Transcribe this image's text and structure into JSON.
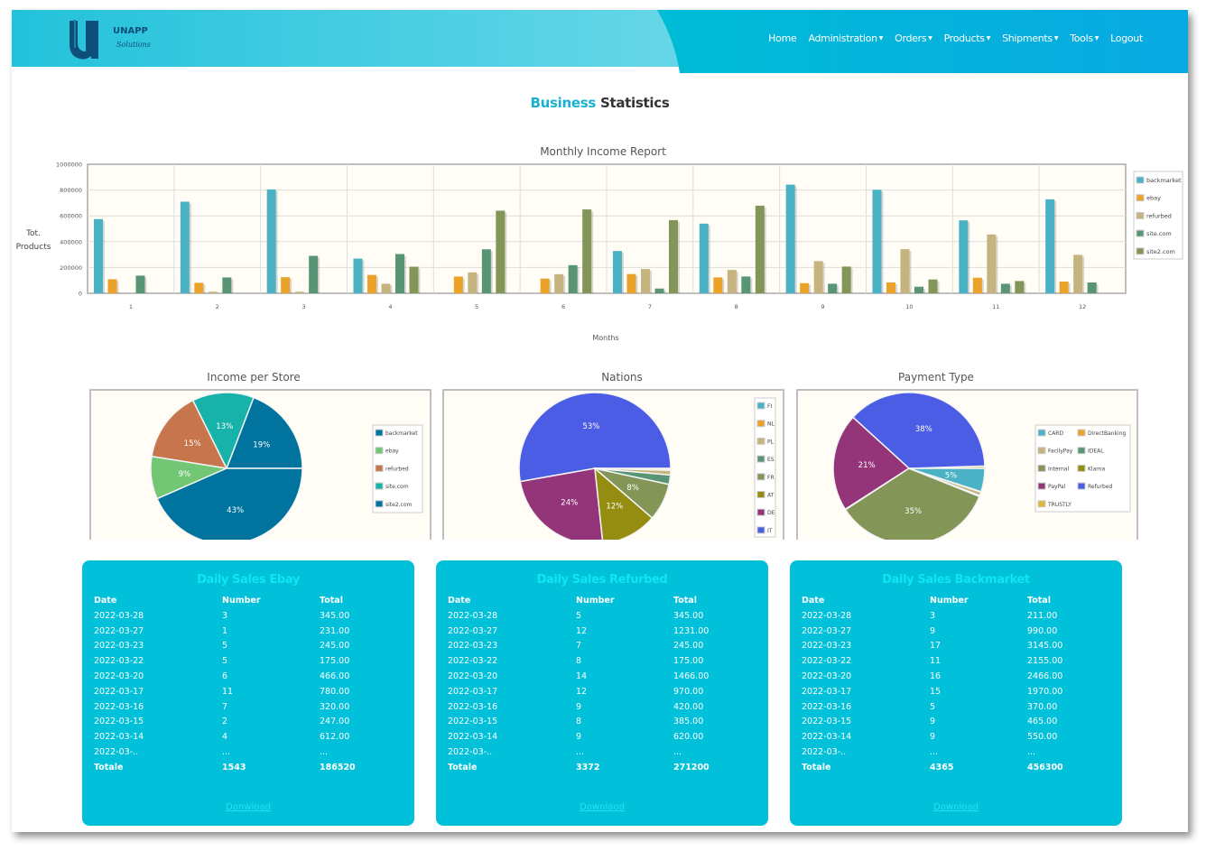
{
  "header": {
    "logo_text": "UNAPP",
    "logo_sub": "Solutions",
    "nav": [
      {
        "label": "Home",
        "caret": false
      },
      {
        "label": "Administration",
        "caret": true
      },
      {
        "label": "Orders",
        "caret": true
      },
      {
        "label": "Products",
        "caret": true
      },
      {
        "label": "Shipments",
        "caret": true
      },
      {
        "label": "Tools",
        "caret": true
      },
      {
        "label": "Logout",
        "caret": false
      }
    ]
  },
  "page_title": {
    "highlight": "Business",
    "rest": "Statistics"
  },
  "chart_data": [
    {
      "type": "bar",
      "title": "Monthly Income Report",
      "xlabel": "Months",
      "ylabel": "Tot. Products",
      "ylim": [
        0,
        1000000
      ],
      "yticks": [
        0,
        200000,
        400000,
        600000,
        800000,
        1000000
      ],
      "categories": [
        "1",
        "2",
        "3",
        "4",
        "5",
        "6",
        "7",
        "8",
        "9",
        "10",
        "11",
        "12"
      ],
      "grid": true,
      "legend": "right",
      "series": [
        {
          "name": "backmarket",
          "color": "#4bb2c5",
          "values": [
            575000,
            710000,
            805000,
            269000,
            0,
            0,
            328000,
            540000,
            842000,
            802000,
            565000,
            728000
          ]
        },
        {
          "name": "ebay",
          "color": "#eaa228",
          "values": [
            109000,
            81000,
            125000,
            142000,
            130000,
            114000,
            149000,
            123000,
            79000,
            84000,
            121000,
            91000
          ]
        },
        {
          "name": "refurbed",
          "color": "#c5b47f",
          "values": [
            0,
            12000,
            12000,
            74000,
            162000,
            148000,
            188000,
            181000,
            249000,
            342000,
            456000,
            298000
          ]
        },
        {
          "name": "site.com",
          "color": "#579575",
          "values": [
            137000,
            123000,
            290000,
            304000,
            341000,
            218000,
            37000,
            130000,
            74000,
            51000,
            74000,
            84000
          ]
        },
        {
          "name": "site2.com",
          "color": "#839557",
          "values": [
            0,
            0,
            0,
            206000,
            640000,
            650000,
            567000,
            679000,
            207000,
            107000,
            95000,
            0
          ]
        }
      ]
    },
    {
      "type": "pie",
      "title": "Income per Store",
      "legend": "right",
      "slices": [
        {
          "label": "backmarket",
          "value": 43,
          "color": "#00749f"
        },
        {
          "label": "ebay",
          "value": 9,
          "color": "#73c774"
        },
        {
          "label": "refurbed",
          "value": 15,
          "color": "#c7754c"
        },
        {
          "label": "site.com",
          "value": 13,
          "color": "#17b2a9"
        },
        {
          "label": "site2.com",
          "value": 19,
          "color": "#00749f"
        }
      ]
    },
    {
      "type": "pie",
      "title": "Nations",
      "legend": "right",
      "slices": [
        {
          "label": "FI",
          "value": 0.2,
          "color": "#4bb2c5"
        },
        {
          "label": "NL",
          "value": 0.2,
          "color": "#eaa228"
        },
        {
          "label": "PL",
          "value": 1,
          "color": "#c5b47f"
        },
        {
          "label": "ES",
          "value": 2,
          "color": "#579575"
        },
        {
          "label": "FR",
          "value": 8,
          "color": "#839557"
        },
        {
          "label": "AT",
          "value": 12,
          "color": "#958c12"
        },
        {
          "label": "DE",
          "value": 24,
          "color": "#953579"
        },
        {
          "label": "IT",
          "value": 53,
          "color": "#4b5de4"
        }
      ]
    },
    {
      "type": "pie",
      "title": "Payment Type",
      "legend": "right",
      "slices": [
        {
          "label": "CARD",
          "value": 5,
          "color": "#4bb2c5"
        },
        {
          "label": "DirectBanking",
          "value": 0.1,
          "color": "#eaa228"
        },
        {
          "label": "FacilyPay",
          "value": 0.8,
          "color": "#c5b47f"
        },
        {
          "label": "IDEAL",
          "value": 0.2,
          "color": "#579575"
        },
        {
          "label": "Internal",
          "value": 35,
          "color": "#839557"
        },
        {
          "label": "Klarna",
          "value": 0.1,
          "color": "#958c12"
        },
        {
          "label": "PayPal",
          "value": 21,
          "color": "#953579"
        },
        {
          "label": "Refurbed",
          "value": 38,
          "color": "#4b5de4"
        },
        {
          "label": "TRUSTLY",
          "value": 0.5,
          "color": "#d8b83f"
        }
      ]
    }
  ],
  "tables": [
    {
      "title": "Daily Sales Ebay",
      "headers": [
        "Date",
        "Number",
        "Total"
      ],
      "rows": [
        [
          "2022-03-28",
          "3",
          "345.00"
        ],
        [
          "2022-03-27",
          "1",
          "231.00"
        ],
        [
          "2022-03-23",
          "5",
          "245.00"
        ],
        [
          "2022-03-22",
          "5",
          "175.00"
        ],
        [
          "2022-03-20",
          "6",
          "466.00"
        ],
        [
          "2022-03-17",
          "11",
          "780.00"
        ],
        [
          "2022-03-16",
          "7",
          "320.00"
        ],
        [
          "2022-03-15",
          "2",
          "247.00"
        ],
        [
          "2022-03-14",
          "4",
          "612.00"
        ],
        [
          "2022-03-..",
          "...",
          "..."
        ]
      ],
      "total": [
        "Totale",
        "1543",
        "186520"
      ],
      "download": "Donwload"
    },
    {
      "title": "Daily Sales Refurbed",
      "headers": [
        "Date",
        "Number",
        "Total"
      ],
      "rows": [
        [
          "2022-03-28",
          "5",
          "345.00"
        ],
        [
          "2022-03-27",
          "12",
          "1231.00"
        ],
        [
          "2022-03-23",
          "7",
          "245.00"
        ],
        [
          "2022-03-22",
          "8",
          "175.00"
        ],
        [
          "2022-03-20",
          "14",
          "1466.00"
        ],
        [
          "2022-03-17",
          "12",
          "970.00"
        ],
        [
          "2022-03-16",
          "9",
          "420.00"
        ],
        [
          "2022-03-15",
          "8",
          "385.00"
        ],
        [
          "2022-03-14",
          "9",
          "620.00"
        ],
        [
          "2022-03-..",
          "...",
          "..."
        ]
      ],
      "total": [
        "Totale",
        "3372",
        "271200"
      ],
      "download": "Downlaod"
    },
    {
      "title": "Daily Sales Backmarket",
      "headers": [
        "Date",
        "Number",
        "Total"
      ],
      "rows": [
        [
          "2022-03-28",
          "3",
          "211.00"
        ],
        [
          "2022-03-27",
          "9",
          "990.00"
        ],
        [
          "2022-03-23",
          "17",
          "3145.00"
        ],
        [
          "2022-03-22",
          "11",
          "2155.00"
        ],
        [
          "2022-03-20",
          "16",
          "2466.00"
        ],
        [
          "2022-03-17",
          "15",
          "1970.00"
        ],
        [
          "2022-03-16",
          "5",
          "370.00"
        ],
        [
          "2022-03-15",
          "9",
          "465.00"
        ],
        [
          "2022-03-14",
          "9",
          "550.00"
        ],
        [
          "2022-03-..",
          "...",
          "..."
        ]
      ],
      "total": [
        "Totale",
        "4365",
        "456300"
      ],
      "download": "Download"
    }
  ]
}
